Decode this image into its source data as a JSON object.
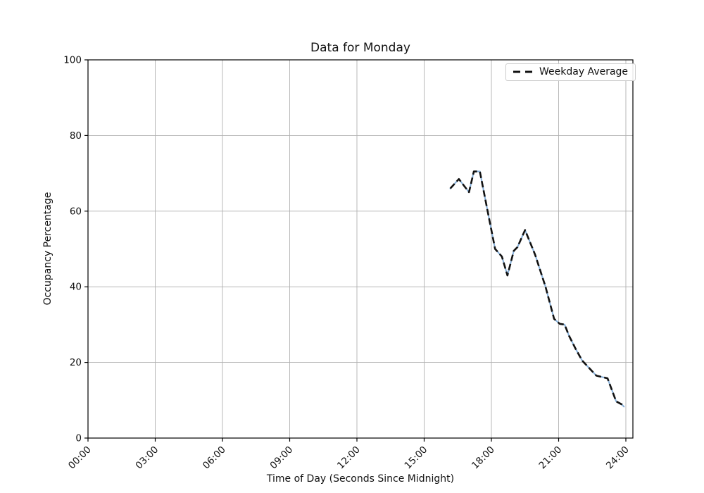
{
  "chart_data": {
    "type": "line",
    "title": "Data for Monday",
    "xlabel": "Time of Day (Seconds Since Midnight)",
    "ylabel": "Occupancy Percentage",
    "x_ticks": {
      "hours": [
        0,
        3,
        6,
        9,
        12,
        15,
        18,
        21,
        24
      ],
      "labels": [
        "00:00",
        "03:00",
        "06:00",
        "09:00",
        "12:00",
        "15:00",
        "18:00",
        "21:00",
        "24:00"
      ]
    },
    "y_ticks": [
      0,
      20,
      40,
      60,
      80,
      100
    ],
    "ylim": [
      0,
      100
    ],
    "xlim_hours": [
      0,
      24.31
    ],
    "grid": true,
    "legend": {
      "position": "upper-right",
      "entries": [
        "Weekday Average"
      ]
    },
    "series": [
      {
        "name": "",
        "style": "solid",
        "color": "#84aed8",
        "in_legend": false
      },
      {
        "name": "Weekday Average",
        "style": "dashed",
        "color": "#111111",
        "in_legend": true
      }
    ],
    "points": [
      {
        "time": "16:10",
        "pct": 66
      },
      {
        "time": "16:33",
        "pct": 68.5
      },
      {
        "time": "17:00",
        "pct": 65
      },
      {
        "time": "17:13",
        "pct": 70.5
      },
      {
        "time": "17:29",
        "pct": 70.5
      },
      {
        "time": "17:55",
        "pct": 57.5
      },
      {
        "time": "18:10",
        "pct": 50
      },
      {
        "time": "18:28",
        "pct": 48
      },
      {
        "time": "18:43",
        "pct": 43
      },
      {
        "time": "19:00",
        "pct": 49.5
      },
      {
        "time": "19:10",
        "pct": 50.5
      },
      {
        "time": "19:30",
        "pct": 55
      },
      {
        "time": "19:57",
        "pct": 48.5
      },
      {
        "time": "20:25",
        "pct": 40
      },
      {
        "time": "20:48",
        "pct": 31.5
      },
      {
        "time": "21:03",
        "pct": 30.2
      },
      {
        "time": "21:16",
        "pct": 30
      },
      {
        "time": "21:28",
        "pct": 27
      },
      {
        "time": "21:46",
        "pct": 23.5
      },
      {
        "time": "22:03",
        "pct": 20.5
      },
      {
        "time": "22:22",
        "pct": 18.5
      },
      {
        "time": "22:41",
        "pct": 16.5
      },
      {
        "time": "23:11",
        "pct": 15.8
      },
      {
        "time": "23:34",
        "pct": 9.7
      },
      {
        "time": "23:49",
        "pct": 8.9
      },
      {
        "time": "23:55",
        "pct": 8.3
      }
    ]
  },
  "colors": {
    "background": "#ffffff",
    "grid": "#b0b0b0",
    "axis": "#000000",
    "text": "#111111"
  }
}
